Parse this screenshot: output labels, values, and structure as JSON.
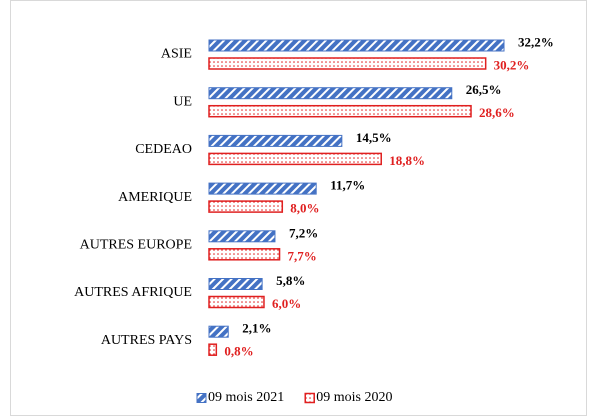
{
  "chart_data": {
    "type": "bar",
    "orientation": "horizontal",
    "categories": [
      "ASIE",
      "UE",
      "CEDEAO",
      "AMERIQUE",
      "AUTRES EUROPE",
      "AUTRES AFRIQUE",
      "AUTRES PAYS"
    ],
    "series": [
      {
        "name": "09 mois 2021",
        "color": "#4472c4",
        "values": [
          32.2,
          26.5,
          14.5,
          11.7,
          7.2,
          5.8,
          2.1
        ],
        "value_labels": [
          "32,2%",
          "26,5%",
          "14,5%",
          "11,7%",
          "7,2%",
          "5,8%",
          "2,1%"
        ]
      },
      {
        "name": "09 mois 2020",
        "color": "#e02020",
        "values": [
          30.2,
          28.6,
          18.8,
          8.0,
          7.7,
          6.0,
          0.8
        ],
        "value_labels": [
          "30,2%",
          "28,6%",
          "18,8%",
          "8,0%",
          "7,7%",
          "6,0%",
          "0,8%"
        ]
      }
    ],
    "legend": "bottom"
  }
}
